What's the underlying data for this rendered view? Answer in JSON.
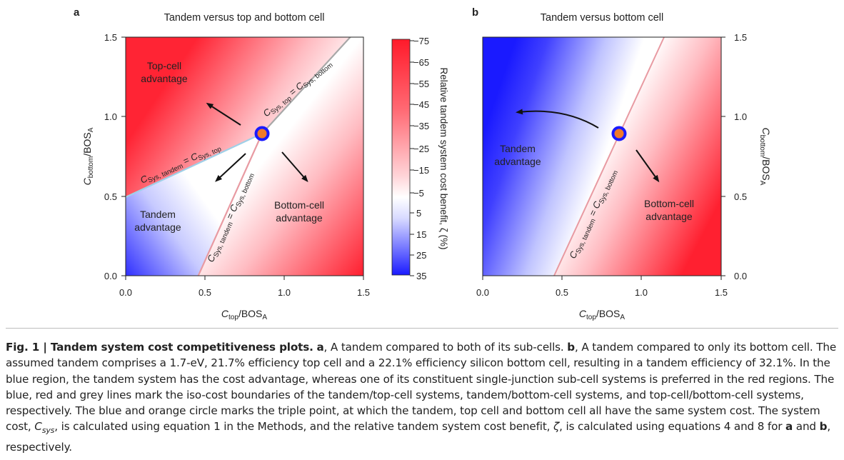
{
  "panel_a": {
    "letter": "a",
    "title": "Tandem versus top and bottom cell",
    "x_ticks": [
      "0.0",
      "0.5",
      "1.0",
      "1.5"
    ],
    "y_ticks": [
      "0.0",
      "0.5",
      "1.0",
      "1.5"
    ],
    "region_top_1": "Top-cell",
    "region_top_2": "advantage",
    "region_tandem_1": "Tandem",
    "region_tandem_2": "advantage",
    "region_bottom_1": "Bottom-cell",
    "region_bottom_2": "advantage",
    "line_grey_C1": "C",
    "line_grey_sub1": "Sys, top",
    "line_grey_eq": " = ",
    "line_grey_C2": "C",
    "line_grey_sub2": "Sys, bottom",
    "line_blue_C1": "C",
    "line_blue_sub1": "Sys, tandem",
    "line_blue_eq": " = ",
    "line_blue_C2": "C",
    "line_blue_sub2": "Sys, top",
    "line_red_C1": "C",
    "line_red_sub1": "Sys, tandem",
    "line_red_eq": " = ",
    "line_red_C2": "C",
    "line_red_sub2": "Sys, bottom"
  },
  "panel_b": {
    "letter": "b",
    "title": "Tandem versus bottom cell",
    "x_ticks": [
      "0.0",
      "0.5",
      "1.0",
      "1.5"
    ],
    "y_ticks": [
      "0.0",
      "0.5",
      "1.0",
      "1.5"
    ],
    "region_tandem_1": "Tandem",
    "region_tandem_2": "advantage",
    "region_bottom_1": "Bottom-cell",
    "region_bottom_2": "advantage",
    "line_red_C1": "C",
    "line_red_sub1": "Sys, tandem",
    "line_red_eq": " = ",
    "line_red_C2": "C",
    "line_red_sub2": "Sys, bottom"
  },
  "axes": {
    "x_C": "C",
    "x_sub": "top",
    "x_div": "/BOS",
    "x_subA": "A",
    "y_C": "C",
    "y_sub": "bottom",
    "y_div": "/BOS",
    "y_subA": "A"
  },
  "colorbar": {
    "ticks": [
      "−75",
      "−65",
      "−55",
      "−45",
      "−35",
      "−25",
      "−15",
      "−5",
      "5",
      "15",
      "25",
      "35"
    ],
    "label": "Relative tandem system cost benefit, ζ (%)"
  },
  "caption": {
    "fig_label": "Fig. 1 | Tandem system cost competitiveness plots.",
    "a1": "a",
    "t1": ", A tandem compared to both of its sub-cells. ",
    "b1": "b",
    "t2": ", A tandem compared to only its bottom cell. The assumed tandem comprises a 1.7-eV, 21.7% efficiency top cell and a 22.1% efficiency silicon bottom cell, resulting in a tandem efficiency of 32.1%. In the blue region, the tandem system has the cost advantage, whereas one of its constituent single-junction sub-cell systems is preferred in the red regions. The blue, red and grey lines mark the iso-cost boundaries of the tandem/top-cell systems, tandem/bottom-cell systems, and top-cell/bottom-cell systems, respectively. The blue and orange circle marks the triple point, at which the tandem, top cell and bottom cell all have the same system cost. The system cost, ",
    "csys_C": "C",
    "csys_sub": "sys",
    "t3": ", is calculated using equation 1 in the Methods, and the relative tandem system cost benefit, ",
    "zeta": "ζ",
    "t4": ", is calculated using equations 4 and 8 for ",
    "a2": "a",
    "t5": " and ",
    "b2": "b",
    "t6": ", respectively."
  },
  "colors": {
    "blue": "#1a1aff",
    "red": "#ff1a2a",
    "grey_line": "#a8a8a8",
    "blue_line": "#9fd0e8",
    "red_line": "#e89aa2",
    "marker_ring": "#1a1aff",
    "marker_fill": "#f07a2a"
  }
}
